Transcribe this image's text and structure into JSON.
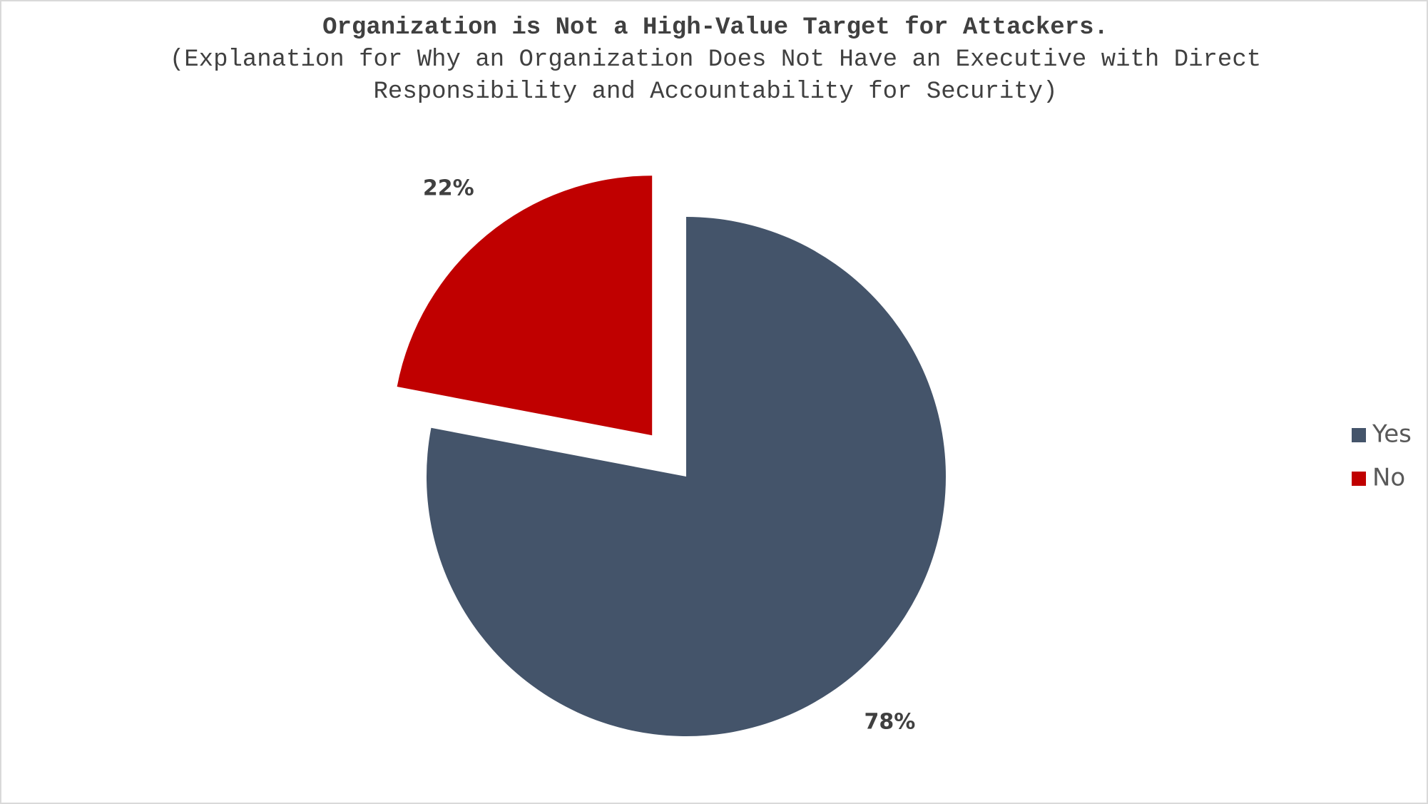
{
  "chart_data": {
    "type": "pie",
    "title": "Organization is Not a High-Value Target for Attackers.",
    "subtitle": "(Explanation for Why an Organization Does Not Have an Executive with Direct Responsibility and Accountability for Security)",
    "categories": [
      "Yes",
      "No"
    ],
    "values": [
      78,
      22
    ],
    "value_labels": [
      "78%",
      "22%"
    ],
    "colors": [
      "#44546a",
      "#c00000"
    ],
    "exploded": [
      false,
      true
    ],
    "legend": "right"
  }
}
